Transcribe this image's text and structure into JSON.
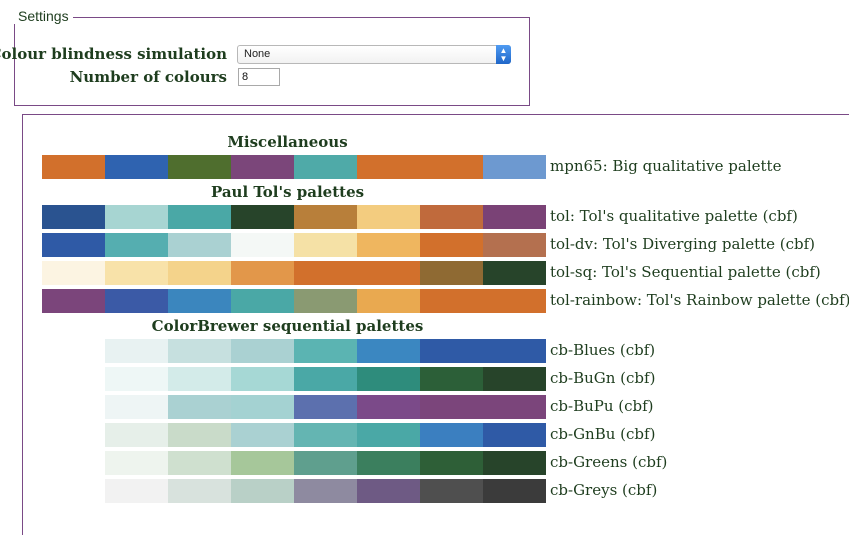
{
  "settings": {
    "legend": "Settings",
    "cb_label": "Colour blindness simulation",
    "cb_value": "None",
    "num_label": "Number of colours",
    "num_value": "8"
  },
  "sections": [
    {
      "title": "Miscellaneous",
      "palettes": [
        {
          "label": "mpn65: Big qualitative palette",
          "offset": 0,
          "colors": [
            "#d2702c",
            "#2f63b0",
            "#4f6e2e",
            "#7b467a",
            "#4faaa8",
            "#d2702c",
            "#d2702c",
            "#6d99d0"
          ]
        }
      ]
    },
    {
      "title": "Paul Tol's palettes",
      "palettes": [
        {
          "label": "tol: Tol's qualitative palette (cbf)",
          "offset": 0,
          "colors": [
            "#2a5390",
            "#a7d5d2",
            "#4aa8a6",
            "#27442a",
            "#b87f3a",
            "#f3cc7f",
            "#c06a3c",
            "#7a4276"
          ]
        },
        {
          "label": "tol-dv: Tol's Diverging palette (cbf)",
          "offset": 0,
          "colors": [
            "#2f5aa6",
            "#55aeb0",
            "#aad1d2",
            "#f4f8f6",
            "#f5e1a6",
            "#efb65f",
            "#d2702c",
            "#b4704f"
          ]
        },
        {
          "label": "tol-sq: Tol's Sequential palette (cbf)",
          "offset": 0,
          "colors": [
            "#fcf4e2",
            "#f8e2a9",
            "#f4d38b",
            "#e2974a",
            "#d2702c",
            "#d2702c",
            "#8f6a33",
            "#27442a"
          ]
        },
        {
          "label": "tol-rainbow: Tol's Rainbow palette (cbf)",
          "offset": 0,
          "colors": [
            "#7b457b",
            "#3b5aa6",
            "#3b86be",
            "#4aa8a6",
            "#8a9a72",
            "#e9a950",
            "#d2702c",
            "#d2702c"
          ]
        }
      ]
    },
    {
      "title": "ColorBrewer sequential palettes",
      "palettes": [
        {
          "label": "cb-Blues (cbf)",
          "offset": 1,
          "colors": [
            "#e8f2f2",
            "#c6e0df",
            "#aad1d2",
            "#5bb4b2",
            "#3b87c1",
            "#2f5aa6",
            "#2f5aa6"
          ]
        },
        {
          "label": "cb-BuGn (cbf)",
          "offset": 1,
          "colors": [
            "#eef7f6",
            "#d3ebe9",
            "#a6d8d5",
            "#4aa8a6",
            "#2e8c7c",
            "#2c5f38",
            "#27442a"
          ]
        },
        {
          "label": "cb-BuPu (cbf)",
          "offset": 1,
          "colors": [
            "#eef5f5",
            "#aad1d2",
            "#a4d2d2",
            "#5c70ae",
            "#7b4a89",
            "#7b457b",
            "#7b457b"
          ]
        },
        {
          "label": "cb-GnBu (cbf)",
          "offset": 1,
          "colors": [
            "#e6efe9",
            "#c9dbc9",
            "#aad1d2",
            "#64b5b2",
            "#4aa8a6",
            "#3b7fc0",
            "#2f5aa6"
          ]
        },
        {
          "label": "cb-Greens (cbf)",
          "offset": 1,
          "colors": [
            "#eef4ee",
            "#cfe0cf",
            "#a6c79a",
            "#5f9f8e",
            "#3b7f5e",
            "#2e5f37",
            "#27442a"
          ]
        },
        {
          "label": "cb-Greys (cbf)",
          "offset": 1,
          "colors": [
            "#f2f2f2",
            "#d8e2dd",
            "#b9d0c7",
            "#8e8aa0",
            "#6e5a84",
            "#4f4f4f",
            "#3b3b3b"
          ]
        }
      ]
    }
  ]
}
